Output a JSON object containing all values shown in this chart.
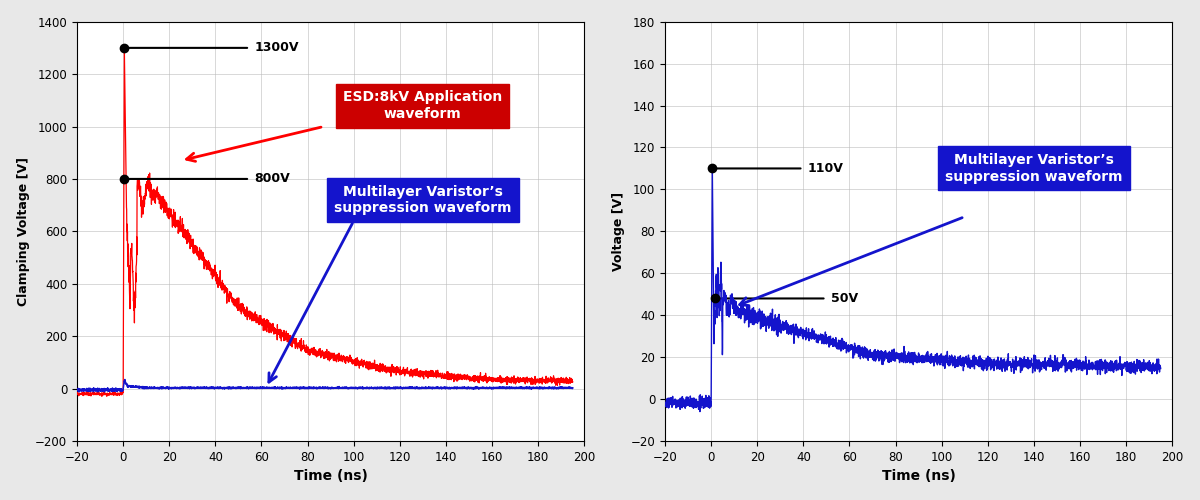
{
  "left_chart": {
    "ylabel": "Clamping Voltage [V]",
    "xlabel": "Time (ns)",
    "xlim": [
      -20,
      200
    ],
    "ylim": [
      -200,
      1400
    ],
    "yticks": [
      -200,
      0,
      200,
      400,
      600,
      800,
      1000,
      1200,
      1400
    ],
    "xticks": [
      -20,
      0,
      20,
      40,
      60,
      80,
      100,
      120,
      140,
      160,
      180,
      200
    ],
    "red_label": "ESD:8kV Application\nwaveform",
    "blue_label": "Multilayer Varistor’s\nsuppression waveform",
    "annot_1300": "1300V",
    "annot_800": "800V",
    "red_color": "#FF0000",
    "blue_color": "#1414CC",
    "red_box_color": "#CC0000",
    "blue_box_color": "#1414CC"
  },
  "right_chart": {
    "ylabel": "Voltage [V]",
    "xlabel": "Time (ns)",
    "xlim": [
      -20,
      200
    ],
    "ylim": [
      -20,
      180
    ],
    "yticks": [
      -20,
      0,
      20,
      40,
      60,
      80,
      100,
      120,
      140,
      160,
      180
    ],
    "xticks": [
      -20,
      0,
      20,
      40,
      60,
      80,
      100,
      120,
      140,
      160,
      180,
      200
    ],
    "blue_label": "Multilayer Varistor’s\nsuppression waveform",
    "annot_110": "110V",
    "annot_50": "50V",
    "blue_color": "#1414CC",
    "blue_box_color": "#1414CC"
  },
  "bg_color": "#FFFFFF",
  "grid_color": "#BBBBBB",
  "fig_bg": "#E8E8E8"
}
